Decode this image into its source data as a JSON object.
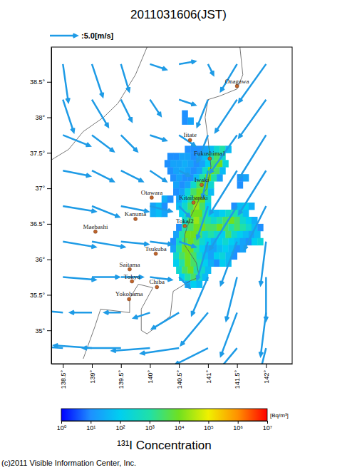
{
  "chart_data": {
    "type": "map",
    "title": "2011031606(JST)",
    "xlim": [
      138.3,
      142.45
    ],
    "ylim": [
      34.53,
      38.99
    ],
    "xticks": [
      {
        "value": 138.5,
        "label": "138.5°"
      },
      {
        "value": 139,
        "label": "139°"
      },
      {
        "value": 139.5,
        "label": "139.5°"
      },
      {
        "value": 140,
        "label": "140°"
      },
      {
        "value": 140.5,
        "label": "140.5°"
      },
      {
        "value": 141,
        "label": "141°"
      },
      {
        "value": 141.5,
        "label": "141.5°"
      },
      {
        "value": 142,
        "label": "142°"
      }
    ],
    "yticks": [
      {
        "value": 35,
        "label": "35°"
      },
      {
        "value": 35.5,
        "label": "35.5°"
      },
      {
        "value": 36,
        "label": "36°"
      },
      {
        "value": 36.5,
        "label": "36.5°"
      },
      {
        "value": 37,
        "label": "37°"
      },
      {
        "value": 37.5,
        "label": "37.5°"
      },
      {
        "value": 38,
        "label": "38°"
      },
      {
        "value": 38.5,
        "label": "38.5°"
      }
    ],
    "scale_arrow": {
      "speed": 5.0,
      "label": ":5.0[m/s]"
    },
    "wind": [
      {
        "lon": 138.5,
        "lat": 38.75,
        "u": 1,
        "v": -7
      },
      {
        "lon": 139,
        "lat": 38.75,
        "u": 2,
        "v": -6
      },
      {
        "lon": 139.5,
        "lat": 38.75,
        "u": 1.5,
        "v": -5
      },
      {
        "lon": 140,
        "lat": 38.75,
        "u": 3,
        "v": -1
      },
      {
        "lon": 140.5,
        "lat": 38.75,
        "u": 3,
        "v": 0.5
      },
      {
        "lon": 141,
        "lat": 38.75,
        "u": 1,
        "v": -2
      },
      {
        "lon": 141.5,
        "lat": 38.75,
        "u": -3,
        "v": -5
      },
      {
        "lon": 142,
        "lat": 38.75,
        "u": -5,
        "v": -7
      },
      {
        "lon": 138.5,
        "lat": 38.25,
        "u": 2,
        "v": -6
      },
      {
        "lon": 139,
        "lat": 38.25,
        "u": 3,
        "v": -5
      },
      {
        "lon": 139.5,
        "lat": 38.25,
        "u": 2,
        "v": -4
      },
      {
        "lon": 140,
        "lat": 38.25,
        "u": 2,
        "v": -3
      },
      {
        "lon": 140.5,
        "lat": 38.25,
        "u": 3,
        "v": -1
      },
      {
        "lon": 141,
        "lat": 38.25,
        "u": -2,
        "v": -5
      },
      {
        "lon": 141.5,
        "lat": 38.25,
        "u": -4,
        "v": -6
      },
      {
        "lon": 142,
        "lat": 38.25,
        "u": -5,
        "v": -7
      },
      {
        "lon": 138.5,
        "lat": 37.75,
        "u": 5,
        "v": -2
      },
      {
        "lon": 139,
        "lat": 37.75,
        "u": 4,
        "v": -3
      },
      {
        "lon": 139.5,
        "lat": 37.75,
        "u": 3,
        "v": -3
      },
      {
        "lon": 140,
        "lat": 37.75,
        "u": 3,
        "v": -1
      },
      {
        "lon": 140.5,
        "lat": 37.75,
        "u": 3,
        "v": -2
      },
      {
        "lon": 141,
        "lat": 37.75,
        "u": -2,
        "v": -5
      },
      {
        "lon": 141.5,
        "lat": 37.75,
        "u": -5,
        "v": -7
      },
      {
        "lon": 142,
        "lat": 37.75,
        "u": -5,
        "v": -8
      },
      {
        "lon": 138.5,
        "lat": 37.25,
        "u": 5,
        "v": -1
      },
      {
        "lon": 139,
        "lat": 37.25,
        "u": 4,
        "v": -2
      },
      {
        "lon": 139.5,
        "lat": 37.25,
        "u": 4,
        "v": -2
      },
      {
        "lon": 140,
        "lat": 37.25,
        "u": 3,
        "v": -2
      },
      {
        "lon": 140.5,
        "lat": 37.25,
        "u": 2,
        "v": -1
      },
      {
        "lon": 141,
        "lat": 37.25,
        "u": -1,
        "v": -5
      },
      {
        "lon": 141.5,
        "lat": 37.25,
        "u": -5,
        "v": -8
      },
      {
        "lon": 142,
        "lat": 37.25,
        "u": -5,
        "v": -8
      },
      {
        "lon": 138.5,
        "lat": 36.75,
        "u": 6,
        "v": -1
      },
      {
        "lon": 139,
        "lat": 36.75,
        "u": 5,
        "v": -2
      },
      {
        "lon": 139.5,
        "lat": 36.75,
        "u": 5,
        "v": -1
      },
      {
        "lon": 140,
        "lat": 36.75,
        "u": 4,
        "v": -1
      },
      {
        "lon": 140.5,
        "lat": 36.75,
        "u": 2,
        "v": -2
      },
      {
        "lon": 141,
        "lat": 36.75,
        "u": -2,
        "v": -6
      },
      {
        "lon": 141.5,
        "lat": 36.75,
        "u": -5,
        "v": -8
      },
      {
        "lon": 142,
        "lat": 36.75,
        "u": -4,
        "v": -8
      },
      {
        "lon": 138.5,
        "lat": 36.25,
        "u": 6,
        "v": -1
      },
      {
        "lon": 139,
        "lat": 36.25,
        "u": 6,
        "v": -1
      },
      {
        "lon": 139.5,
        "lat": 36.25,
        "u": 5,
        "v": -0.5
      },
      {
        "lon": 140,
        "lat": 36.25,
        "u": 4,
        "v": -0.5
      },
      {
        "lon": 140.5,
        "lat": 36.25,
        "u": 3,
        "v": -1
      },
      {
        "lon": 141,
        "lat": 36.25,
        "u": -2,
        "v": -7
      },
      {
        "lon": 141.5,
        "lat": 36.25,
        "u": -3,
        "v": -8
      },
      {
        "lon": 142,
        "lat": 36.25,
        "u": -1,
        "v": -8
      },
      {
        "lon": 138.5,
        "lat": 35.75,
        "u": 6,
        "v": -0.5
      },
      {
        "lon": 139,
        "lat": 35.75,
        "u": 5,
        "v": 0
      },
      {
        "lon": 139.5,
        "lat": 35.75,
        "u": 4,
        "v": 0
      },
      {
        "lon": 140,
        "lat": 35.75,
        "u": 4,
        "v": -0.5
      },
      {
        "lon": 140.5,
        "lat": 35.75,
        "u": 2,
        "v": -2
      },
      {
        "lon": 141,
        "lat": 35.75,
        "u": -3,
        "v": -7
      },
      {
        "lon": 141.5,
        "lat": 35.75,
        "u": -2,
        "v": -8
      },
      {
        "lon": 142,
        "lat": 35.75,
        "u": 0,
        "v": -8
      },
      {
        "lon": 138.5,
        "lat": 35.25,
        "u": -5,
        "v": 0.5
      },
      {
        "lon": 139,
        "lat": 35.25,
        "u": -4,
        "v": 0
      },
      {
        "lon": 139.5,
        "lat": 35.25,
        "u": -3,
        "v": 0
      },
      {
        "lon": 140,
        "lat": 35.25,
        "u": -3,
        "v": -1
      },
      {
        "lon": 140.5,
        "lat": 35.25,
        "u": -5,
        "v": -3
      },
      {
        "lon": 141,
        "lat": 35.25,
        "u": -5,
        "v": -6
      },
      {
        "lon": 141.5,
        "lat": 35.25,
        "u": -3,
        "v": -8
      },
      {
        "lon": 142,
        "lat": 35.25,
        "u": -1,
        "v": -8
      },
      {
        "lon": 138.5,
        "lat": 34.75,
        "u": -7,
        "v": 0.5
      },
      {
        "lon": 139,
        "lat": 34.75,
        "u": -7,
        "v": 0.5
      },
      {
        "lon": 139.5,
        "lat": 34.75,
        "u": -7,
        "v": 0
      },
      {
        "lon": 140,
        "lat": 34.75,
        "u": -7,
        "v": -0.5
      },
      {
        "lon": 140.5,
        "lat": 34.75,
        "u": -7,
        "v": -1
      },
      {
        "lon": 141,
        "lat": 34.75,
        "u": -6,
        "v": -3
      },
      {
        "lon": 141.5,
        "lat": 34.75,
        "u": -5,
        "v": -6
      },
      {
        "lon": 142,
        "lat": 34.75,
        "u": -2,
        "v": -8
      }
    ],
    "plume_cell_size": [
      0.1,
      0.1
    ],
    "plume": [
      {
        "lat": 38.0,
        "lon": 140.55,
        "values": [
          10
        ]
      },
      {
        "lat": 37.9,
        "lon": 140.55,
        "values": [
          10,
          20
        ]
      },
      {
        "lat": 37.5,
        "lon": 140.6,
        "values": [
          10,
          10,
          10,
          20,
          50,
          300,
          1000,
          50
        ]
      },
      {
        "lat": 37.4,
        "lon": 140.3,
        "values": [
          10,
          10,
          20,
          20,
          10,
          20,
          50,
          500,
          3000,
          300
        ]
      },
      {
        "lat": 37.3,
        "lon": 140.25,
        "values": [
          10,
          20,
          20,
          30,
          20,
          10,
          20,
          100,
          3000,
          10000,
          200
        ]
      },
      {
        "lat": 37.2,
        "lon": 140.3,
        "values": [
          10,
          20,
          30,
          20,
          10,
          20,
          300,
          10000,
          3000,
          50
        ]
      },
      {
        "lat": 37.1,
        "lon": 140.35,
        "values": [
          10,
          20,
          10,
          10,
          50,
          1000,
          10000,
          1000,
          20
        ]
      },
      {
        "lat": 37.1,
        "lon": 141.5,
        "values": [
          10,
          20
        ]
      },
      {
        "lat": 37.0,
        "lon": 140.4,
        "values": [
          20,
          10,
          20,
          300,
          3000,
          10000,
          300
        ]
      },
      {
        "lat": 37.0,
        "lon": 141.5,
        "values": [
          10
        ]
      },
      {
        "lat": 36.9,
        "lon": 140.4,
        "values": [
          10,
          20,
          200,
          3000,
          10000,
          3000,
          50
        ]
      },
      {
        "lat": 36.8,
        "lon": 140.2,
        "values": [
          30,
          10
        ]
      },
      {
        "lat": 36.8,
        "lon": 140.45,
        "values": [
          20,
          100,
          1000,
          10000,
          10000,
          300
        ]
      },
      {
        "lat": 36.7,
        "lon": 140.0,
        "values": [
          20,
          50,
          10
        ]
      },
      {
        "lat": 36.7,
        "lon": 140.45,
        "values": [
          50,
          300,
          3000,
          20000,
          3000,
          100
        ]
      },
      {
        "lat": 36.7,
        "lon": 141.4,
        "values": [
          10,
          50,
          100,
          30
        ]
      },
      {
        "lat": 36.6,
        "lon": 140.0,
        "values": [
          30,
          50,
          20
        ]
      },
      {
        "lat": 36.6,
        "lon": 140.5,
        "values": [
          100,
          1000,
          10000,
          10000,
          1000,
          100,
          50,
          100,
          300,
          1000,
          300,
          50
        ]
      },
      {
        "lat": 36.5,
        "lon": 140.55,
        "values": [
          300,
          3000,
          20000,
          3000,
          1000,
          300,
          1000,
          3000,
          10000,
          3000,
          300,
          100,
          30
        ]
      },
      {
        "lat": 36.4,
        "lon": 140.45,
        "values": [
          10,
          1000,
          3000,
          10000,
          10000,
          3000,
          3000,
          10000,
          3000,
          1000,
          3000,
          1000,
          300,
          50,
          10
        ]
      },
      {
        "lat": 36.3,
        "lon": 140.4,
        "values": [
          20,
          1000,
          10000,
          10000,
          3000,
          300,
          1000,
          300,
          100,
          3000,
          300,
          100,
          50,
          20,
          50
        ]
      },
      {
        "lat": 36.2,
        "lon": 140.35,
        "values": [
          10,
          300,
          3000,
          10000,
          3000,
          300,
          100,
          30,
          100,
          300,
          100,
          50,
          20,
          10,
          100,
          200
        ]
      },
      {
        "lat": 36.1,
        "lon": 140.35,
        "values": [
          20,
          1000,
          10000,
          10000,
          1000,
          100,
          20,
          20,
          50,
          100,
          50,
          10,
          20
        ]
      },
      {
        "lat": 36.0,
        "lon": 140.4,
        "values": [
          300,
          3000,
          10000,
          3000,
          300,
          50,
          20,
          100,
          200,
          50,
          10
        ]
      },
      {
        "lat": 35.9,
        "lon": 140.4,
        "values": [
          100,
          1000,
          10000,
          3000,
          1000,
          100,
          30,
          10,
          100,
          50
        ]
      },
      {
        "lat": 35.8,
        "lon": 140.45,
        "values": [
          300,
          3000,
          10000,
          1000,
          300,
          50
        ]
      },
      {
        "lat": 35.7,
        "lon": 140.5,
        "values": [
          100,
          1000,
          3000,
          300,
          50
        ]
      },
      {
        "lat": 35.6,
        "lon": 140.6,
        "values": [
          30,
          100,
          50
        ]
      }
    ],
    "coastlines": [
      [
        [
          141.55,
          38.99
        ],
        [
          141.6,
          38.6
        ],
        [
          141.5,
          38.4
        ],
        [
          141.2,
          38.3
        ],
        [
          141.0,
          38.25
        ],
        [
          140.95,
          38.0
        ],
        [
          141.0,
          37.7
        ],
        [
          141.05,
          37.3
        ],
        [
          140.98,
          37.0
        ],
        [
          140.85,
          36.85
        ],
        [
          140.7,
          36.6
        ],
        [
          140.6,
          36.35
        ],
        [
          140.6,
          36.2
        ],
        [
          140.8,
          35.95
        ],
        [
          140.85,
          35.75
        ],
        [
          140.7,
          35.7
        ],
        [
          140.4,
          35.55
        ],
        [
          140.35,
          35.2
        ],
        [
          139.95,
          34.95
        ],
        [
          139.85,
          35.0
        ],
        [
          139.85,
          35.3
        ],
        [
          140.05,
          35.6
        ],
        [
          139.8,
          35.65
        ],
        [
          139.65,
          35.45
        ],
        [
          139.65,
          35.25
        ],
        [
          139.15,
          35.3
        ],
        [
          139.05,
          35.05
        ],
        [
          138.85,
          34.6
        ]
      ],
      [
        [
          139.95,
          38.99
        ],
        [
          139.75,
          38.6
        ],
        [
          139.45,
          38.2
        ],
        [
          139.2,
          38.0
        ],
        [
          138.85,
          37.8
        ],
        [
          138.6,
          37.55
        ],
        [
          138.3,
          37.4
        ]
      ]
    ],
    "cities": [
      {
        "name": "Onagawa",
        "lon": 141.5,
        "lat": 38.44
      },
      {
        "name": "Iitate",
        "lon": 140.69,
        "lat": 37.68
      },
      {
        "name": "Fukushima1",
        "lon": 141.03,
        "lat": 37.42
      },
      {
        "name": "Iwaki",
        "lon": 140.89,
        "lat": 37.05
      },
      {
        "name": "Otawara",
        "lon": 140.03,
        "lat": 36.87
      },
      {
        "name": "Kitaibaraki",
        "lon": 140.75,
        "lat": 36.8
      },
      {
        "name": "Tokai2",
        "lon": 140.6,
        "lat": 36.47
      },
      {
        "name": "Kanuma",
        "lon": 139.75,
        "lat": 36.57
      },
      {
        "name": "Maebashi",
        "lon": 139.06,
        "lat": 36.39
      },
      {
        "name": "Tsukuba",
        "lon": 140.1,
        "lat": 36.08
      },
      {
        "name": "Saitama",
        "lon": 139.65,
        "lat": 35.86
      },
      {
        "name": "Tokyo",
        "lon": 139.69,
        "lat": 35.69
      },
      {
        "name": "Chiba",
        "lon": 140.12,
        "lat": 35.61
      },
      {
        "name": "Yokohama",
        "lon": 139.64,
        "lat": 35.44
      }
    ],
    "colorbar": {
      "range": [
        1,
        10000000
      ],
      "ticks": [
        {
          "value": 1,
          "label": "10⁰"
        },
        {
          "value": 10,
          "label": "10¹"
        },
        {
          "value": 100,
          "label": "10²"
        },
        {
          "value": 1000,
          "label": "10³"
        },
        {
          "value": 10000,
          "label": "10⁴"
        },
        {
          "value": 100000,
          "label": "10⁵"
        },
        {
          "value": 1000000,
          "label": "10⁶"
        },
        {
          "value": 10000000,
          "label": "10⁷"
        }
      ],
      "unit": "[Bq/m³]",
      "title": "¹³¹I Concentration"
    },
    "copyright": "(c)2011 Visible Information Center, Inc."
  }
}
